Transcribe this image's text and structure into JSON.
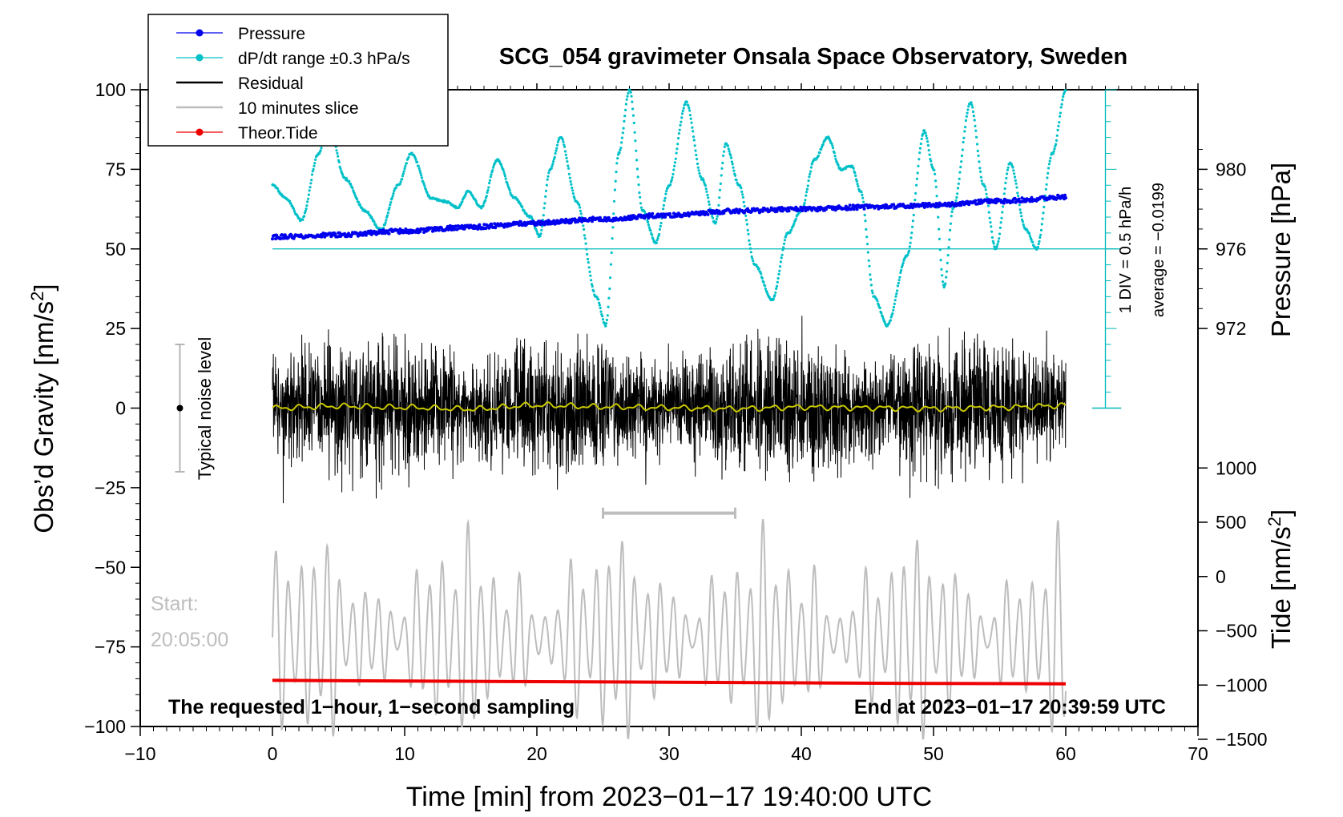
{
  "chart_data": {
    "type": "line",
    "title": "SCG_054 gravimeter Onsala Space Observatory, Sweden",
    "xlabel": "Time [min] from 2023−01−17 19:40:00 UTC",
    "xlim": [
      -10,
      70
    ],
    "xticks": [
      "−10",
      "0",
      "10",
      "20",
      "30",
      "40",
      "50",
      "60",
      "70"
    ],
    "left_axis": {
      "label": "Obs’d Gravity [nm/s²]",
      "label_main": "Obs’d Gravity [nm/s",
      "label_sup": "2",
      "label_end": "]",
      "ylim": [
        -100,
        100
      ],
      "ticks": [
        "100",
        "75",
        "50",
        "25",
        "0",
        "−25",
        "−50",
        "−75",
        "−100"
      ]
    },
    "pressure_axis": {
      "label": "Pressure [hPa]",
      "ticks": [
        "980",
        "976",
        "972"
      ],
      "tick_values": [
        980,
        976,
        972
      ]
    },
    "tide_axis": {
      "label": "Tide [nm/s²]",
      "label_main": "Tide [nm/s",
      "label_sup": "2",
      "label_end": "]",
      "ticks": [
        "1000",
        "500",
        "0",
        "−500",
        "−1000",
        "−1500"
      ],
      "tick_values": [
        1000,
        500,
        0,
        -500,
        -1000,
        -1500
      ]
    },
    "legend": {
      "placement": "top-left",
      "entries": [
        {
          "label": "Pressure",
          "color": "#0000ee",
          "marker": true
        },
        {
          "label": "dP/dt range ±0.3 hPa/s",
          "color": "#00c0c8",
          "marker": true
        },
        {
          "label": "Residual",
          "color": "#000000",
          "marker": false
        },
        {
          "label": "10 minutes slice",
          "color": "#bdbdbd",
          "marker": false
        },
        {
          "label": "Theor.Tide",
          "color": "#ee0000",
          "marker": true
        }
      ]
    },
    "annotations": {
      "div_scale": "1 DIV = 0.5 hPa/h",
      "average": "average = −0.0199",
      "noise_label": "Typical noise level",
      "start_label": "Start:",
      "start_time": "20:05:00",
      "bottom_left": "The requested 1−hour, 1−second sampling",
      "bottom_right": "End at 2023−01−17 20:39:59 UTC"
    },
    "noise_bar": {
      "x": -7,
      "center": 0,
      "low": -20,
      "high": 20
    },
    "slice_bracket": {
      "start": 25,
      "end": 35,
      "y": -33
    },
    "dpdt_reference_level": 50,
    "series": [
      {
        "name": "Pressure",
        "color": "#0000ee",
        "unit": "hPa",
        "x": [
          0,
          5,
          10,
          15,
          20,
          25,
          30,
          35,
          40,
          45,
          50,
          55,
          60
        ],
        "y": [
          976.6,
          976.7,
          976.9,
          977.1,
          977.3,
          977.5,
          977.7,
          977.9,
          978.0,
          978.1,
          978.2,
          978.4,
          978.6
        ]
      },
      {
        "name": "dP/dt",
        "color": "#00c0c8",
        "unit": "nm/s² (plot scale)",
        "x": [
          0,
          1,
          2.2,
          3.5,
          4.2,
          5.5,
          7,
          8.2,
          9.5,
          10.5,
          12,
          13,
          14,
          14.8,
          15.8,
          17,
          18.3,
          19.5,
          20.2,
          21,
          21.8,
          23,
          24.5,
          25.2,
          26.2,
          27,
          28,
          29,
          30,
          31.3,
          32.5,
          33.5,
          34.3,
          35.3,
          36.5,
          37.8,
          39,
          40,
          41,
          42,
          43,
          43.8,
          44.5,
          45.5,
          46.5,
          48,
          49.3,
          50,
          50.8,
          51.5,
          52.8,
          53.8,
          54.7,
          55.8,
          57,
          57.8,
          59,
          60
        ],
        "y": [
          70,
          66,
          59,
          80,
          90,
          72,
          62,
          56,
          70,
          80,
          66,
          65,
          63,
          68,
          63,
          78,
          66,
          60,
          54,
          75,
          85,
          65,
          35,
          26,
          80,
          100,
          62,
          52,
          70,
          96,
          72,
          58,
          83,
          70,
          45,
          34,
          55,
          62,
          78,
          85,
          75,
          76,
          68,
          35,
          26,
          48,
          87,
          75,
          38,
          63,
          96,
          70,
          50,
          77,
          56,
          50,
          80,
          100
        ]
      },
      {
        "name": "Residual",
        "color": "#000000",
        "unit": "nm/s²",
        "x": [
          0,
          5,
          10,
          15,
          20,
          25,
          30,
          35,
          40,
          45,
          50,
          55,
          60
        ],
        "y": [
          0,
          0.6,
          0.2,
          -0.3,
          0.9,
          0.4,
          0.1,
          -0.2,
          0.3,
          0.1,
          -0.1,
          0.2,
          0.8
        ]
      },
      {
        "name": "Residual (smoothed)",
        "color": "#c8c800",
        "unit": "nm/s²",
        "x": [
          0,
          5,
          10,
          15,
          20,
          25,
          30,
          35,
          40,
          45,
          50,
          55,
          60
        ],
        "y": [
          0,
          0.6,
          0.2,
          -0.3,
          0.9,
          0.4,
          0.1,
          -0.2,
          0.3,
          0.1,
          -0.1,
          0.2,
          0.8
        ]
      },
      {
        "name": "10 minutes slice",
        "color": "#bdbdbd",
        "unit": "nm/s² (plot scale)",
        "x": [
          0,
          60
        ],
        "y": [
          -72,
          -72
        ]
      },
      {
        "name": "Theor.Tide",
        "color": "#ee0000",
        "unit": "nm/s² (plot scale)",
        "x": [
          0,
          10,
          20,
          30,
          40,
          50,
          60
        ],
        "y": [
          -85.5,
          -85.7,
          -85.9,
          -86.1,
          -86.3,
          -86.5,
          -86.6
        ]
      }
    ]
  }
}
